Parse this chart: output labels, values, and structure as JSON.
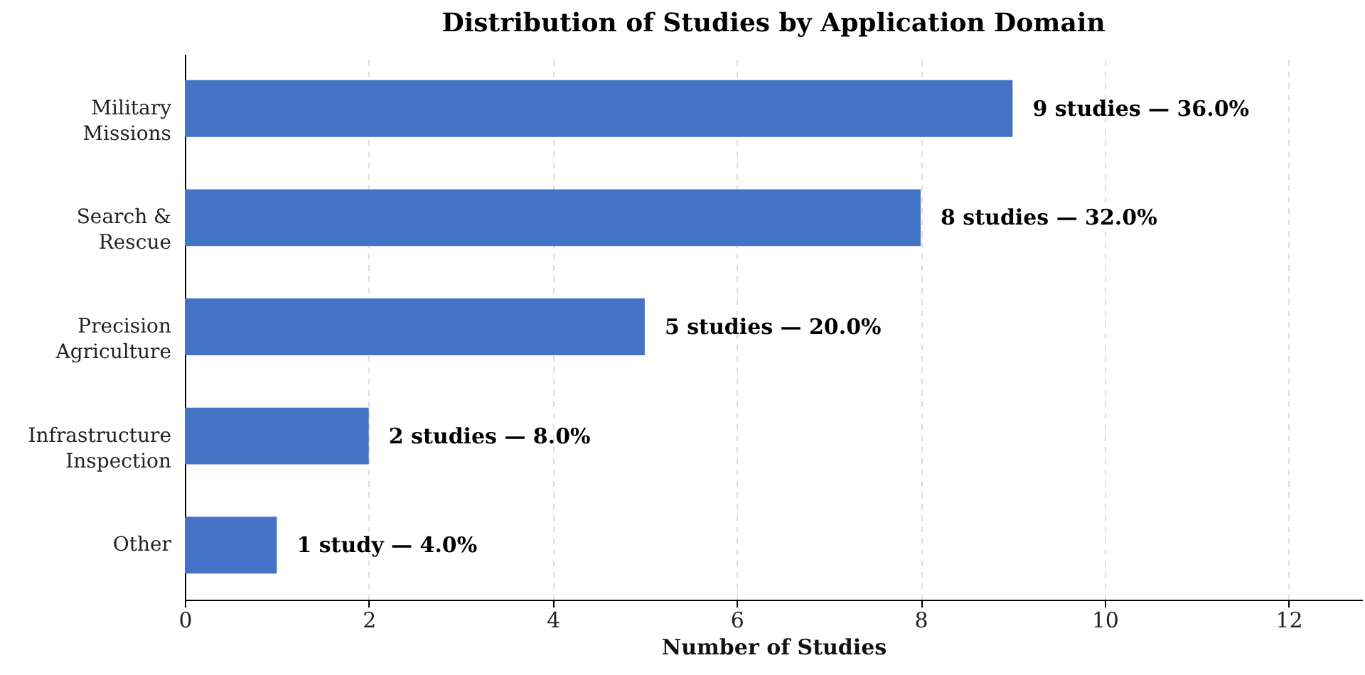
{
  "chart_data": {
    "type": "bar",
    "orientation": "horizontal",
    "title": "Distribution of Studies by Application Domain",
    "xlabel": "Number of Studies",
    "categories": [
      "Military\nMissions",
      "Search &\nRescue",
      "Precision\nAgriculture",
      "Infrastructure\nInspection",
      "Other"
    ],
    "values": [
      9,
      8,
      5,
      2,
      1
    ],
    "value_labels": [
      "9 studies — 36.0%",
      "8 studies — 32.0%",
      "5 studies — 20.0%",
      "2 studies — 8.0%",
      "1 study — 4.0%"
    ],
    "color": "#4472c4",
    "xlim": [
      0,
      12.8
    ],
    "xticks": [
      0,
      2,
      4,
      6,
      8,
      10,
      12
    ],
    "grid": "x"
  }
}
